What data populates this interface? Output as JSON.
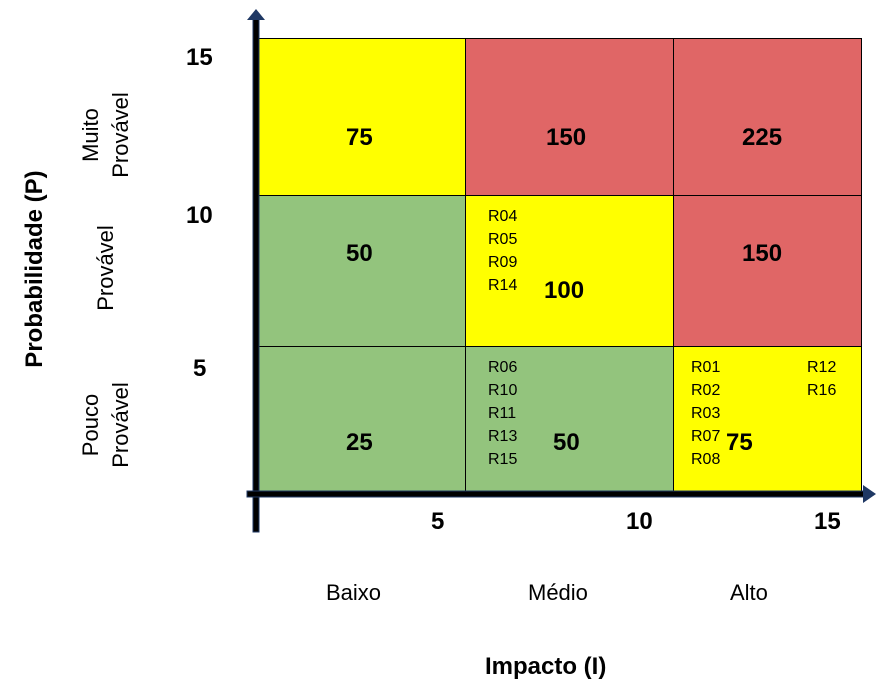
{
  "chart_data": {
    "type": "heatmap",
    "x_axis": {
      "title": "Impacto (I)",
      "ticks": [
        "5",
        "10",
        "15"
      ],
      "categories": [
        "Baixo",
        "Médio",
        "Alto"
      ]
    },
    "y_axis": {
      "title": "Probabilidade (P)",
      "ticks": [
        "5",
        "10",
        "15"
      ],
      "categories": [
        "Pouco Provável",
        "Provável",
        "Muito Provável"
      ]
    },
    "cells": [
      {
        "row": "Muito Provável",
        "col": "Baixo",
        "value": "75",
        "color": "#ffff00",
        "risks": []
      },
      {
        "row": "Muito Provável",
        "col": "Médio",
        "value": "150",
        "color": "#e06666",
        "risks": []
      },
      {
        "row": "Muito Provável",
        "col": "Alto",
        "value": "225",
        "color": "#e06666",
        "risks": []
      },
      {
        "row": "Provável",
        "col": "Baixo",
        "value": "50",
        "color": "#93c47d",
        "risks": []
      },
      {
        "row": "Provável",
        "col": "Médio",
        "value": "100",
        "color": "#ffff00",
        "risks": [
          "R04",
          "R05",
          "R09",
          "R14"
        ]
      },
      {
        "row": "Provável",
        "col": "Alto",
        "value": "150",
        "color": "#e06666",
        "risks": []
      },
      {
        "row": "Pouco Provável",
        "col": "Baixo",
        "value": "25",
        "color": "#93c47d",
        "risks": []
      },
      {
        "row": "Pouco Provável",
        "col": "Médio",
        "value": "50",
        "color": "#93c47d",
        "risks": [
          "R06",
          "R10",
          "R11",
          "R13",
          "R15"
        ]
      },
      {
        "row": "Pouco Provável",
        "col": "Alto",
        "value": "75",
        "color": "#ffff00",
        "risks": [
          "R01",
          "R02",
          "R03",
          "R07",
          "R08"
        ],
        "risks_right": [
          "R12",
          "R16"
        ]
      }
    ],
    "row_labels": [
      {
        "line1": "Muito",
        "line2": "Provável"
      },
      {
        "line1": "Provável",
        "line2": ""
      },
      {
        "line1": "Pouco",
        "line2": "Provável"
      }
    ],
    "axis_color": "#1f3864"
  }
}
